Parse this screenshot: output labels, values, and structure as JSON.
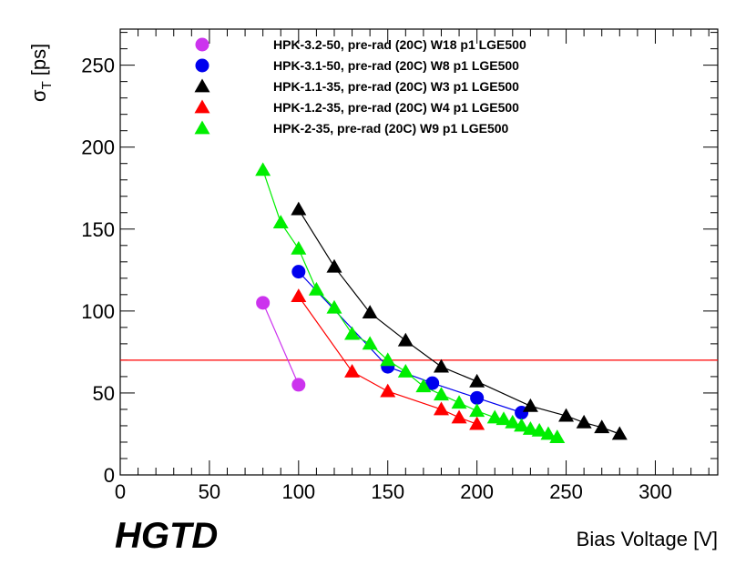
{
  "chart_data": {
    "type": "scatter",
    "title": "",
    "xlabel": "Bias Voltage [V]",
    "ylabel_main": "σ",
    "ylabel_sub": "T",
    "ylabel_unit": "[ps]",
    "experiment_label": "HGTD",
    "xlim": [
      0,
      335
    ],
    "ylim": [
      0,
      272
    ],
    "x_ticks": [
      0,
      50,
      100,
      150,
      200,
      250,
      300
    ],
    "y_ticks": [
      0,
      50,
      100,
      150,
      200,
      250
    ],
    "x_tick_labels": [
      "0",
      "50",
      "100",
      "150",
      "200",
      "250",
      "300"
    ],
    "y_tick_labels": [
      "0",
      "50",
      "100",
      "150",
      "200",
      "250"
    ],
    "reference_line": {
      "y": 70,
      "color": "#ff0000"
    },
    "series": [
      {
        "name": "HPK-3.2-50, pre-rad (20C) W18 p1 LGE500",
        "marker": "circle",
        "color": "#cc33ee",
        "x": [
          80,
          100
        ],
        "y": [
          105,
          55
        ]
      },
      {
        "name": "HPK-3.1-50, pre-rad (20C) W8 p1 LGE500",
        "marker": "circle",
        "color": "#0000ee",
        "x": [
          100,
          150,
          175,
          200,
          225
        ],
        "y": [
          124,
          66,
          56,
          47,
          38
        ]
      },
      {
        "name": "HPK-1.1-35, pre-rad (20C) W3 p1 LGE500",
        "marker": "triangle",
        "color": "#000000",
        "x": [
          100,
          120,
          140,
          160,
          180,
          200,
          230,
          250,
          260,
          270,
          280
        ],
        "y": [
          162,
          127,
          99,
          82,
          66,
          57,
          42,
          36,
          32,
          29,
          25
        ]
      },
      {
        "name": "HPK-1.2-35, pre-rad (20C) W4 p1 LGE500",
        "marker": "triangle",
        "color": "#ff0000",
        "x": [
          100,
          130,
          150,
          180,
          190,
          200
        ],
        "y": [
          109,
          63,
          51,
          40,
          35,
          31
        ]
      },
      {
        "name": "HPK-2-35, pre-rad (20C) W9 p1 LGE500",
        "marker": "triangle",
        "color": "#00ee00",
        "x": [
          80,
          90,
          100,
          110,
          120,
          130,
          140,
          150,
          160,
          170,
          180,
          190,
          200,
          210,
          215,
          220,
          225,
          230,
          235,
          240,
          245
        ],
        "y": [
          186,
          154,
          138,
          113,
          102,
          86,
          80,
          70,
          63,
          54,
          49,
          44,
          39,
          35,
          34,
          32,
          30,
          28,
          27,
          25,
          23
        ]
      }
    ]
  }
}
